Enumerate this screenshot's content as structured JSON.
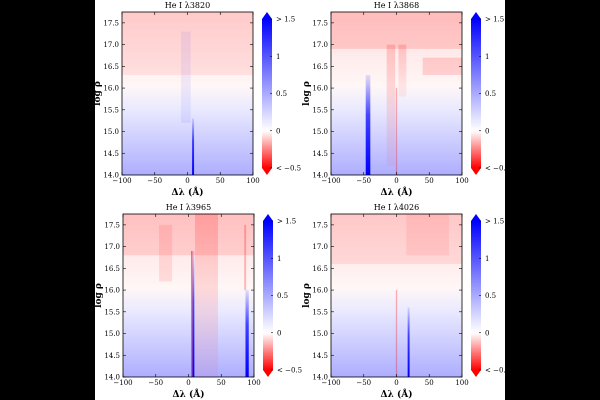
{
  "chart_data": [
    {
      "type": "heatmap",
      "title": "He I λ3820",
      "xlabel": "Δλ (Å)",
      "ylabel": "log ρ",
      "xlim": [
        -100,
        100
      ],
      "ylim": [
        14.0,
        17.75
      ],
      "xticks": [
        "−100",
        "−50",
        "0",
        "50",
        "100"
      ],
      "yticks": [
        "14.0",
        "14.5",
        "15.0",
        "15.5",
        "16.0",
        "16.5",
        "17.0",
        "17.5"
      ]
    },
    {
      "type": "heatmap",
      "title": "He I λ3868",
      "xlabel": "Δλ (Å)",
      "ylabel": "log ρ",
      "xlim": [
        -100,
        100
      ],
      "ylim": [
        14.0,
        17.75
      ],
      "xticks": [
        "−100",
        "−50",
        "0",
        "50",
        "100"
      ],
      "yticks": [
        "14.0",
        "14.5",
        "15.0",
        "15.5",
        "16.0",
        "16.5",
        "17.0",
        "17.5"
      ]
    },
    {
      "type": "heatmap",
      "title": "He I λ3965",
      "xlabel": "Δλ (Å)",
      "ylabel": "log ρ",
      "xlim": [
        -100,
        100
      ],
      "ylim": [
        14.0,
        17.75
      ],
      "xticks": [
        "−100",
        "−50",
        "0",
        "50",
        "100"
      ],
      "yticks": [
        "14.0",
        "14.5",
        "15.0",
        "15.5",
        "16.0",
        "16.5",
        "17.0",
        "17.5"
      ]
    },
    {
      "type": "heatmap",
      "title": "He I λ4026",
      "xlabel": "Δλ (Å)",
      "ylabel": "log ρ",
      "xlim": [
        -100,
        100
      ],
      "ylim": [
        14.0,
        17.75
      ],
      "xticks": [
        "−100",
        "−50",
        "0",
        "50",
        "100"
      ],
      "yticks": [
        "14.0",
        "14.5",
        "15.0",
        "15.5",
        "16.0",
        "16.5",
        "17.0",
        "17.5"
      ]
    }
  ],
  "colorbar": {
    "range": [
      -0.5,
      1.5
    ],
    "ticks": [
      {
        "v": 1.5,
        "label": "> 1.5"
      },
      {
        "v": 1,
        "label": "1"
      },
      {
        "v": 0.5,
        "label": "0.5"
      },
      {
        "v": 0,
        "label": "0"
      },
      {
        "v": -0.5,
        "label": "< −0.5"
      }
    ],
    "colors": {
      "low": "#ff0000",
      "mid": "#ffffff",
      "high": "#0000ff"
    },
    "extend": "both"
  }
}
